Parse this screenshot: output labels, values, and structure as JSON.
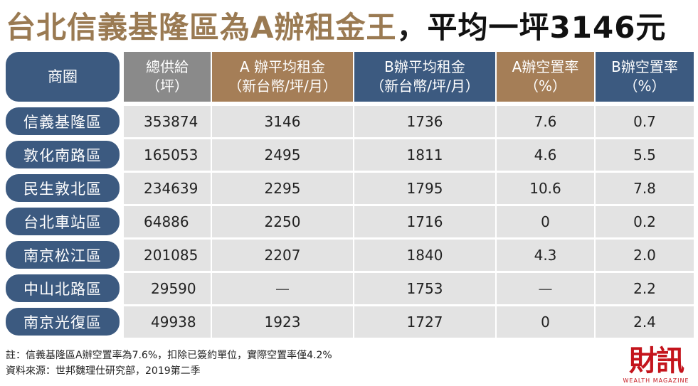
{
  "title": {
    "main": "台北信義基隆區為A辦租金王",
    "separator": "，",
    "highlight": "平均一坪3146元"
  },
  "table": {
    "headers": [
      {
        "line1": "商圈",
        "line2": ""
      },
      {
        "line1": "總供給",
        "line2": "（坪）"
      },
      {
        "line1": "A 辦平均租金",
        "line2": "（新台幣/坪/月）"
      },
      {
        "line1": "B辦平均租金",
        "line2": "（新台幣/坪/月）"
      },
      {
        "line1": "A辦空置率",
        "line2": "（%）"
      },
      {
        "line1": "B辦空置率",
        "line2": "（%）"
      }
    ],
    "rows": [
      {
        "district": "信義基隆區",
        "supply": "353874",
        "a_rent": "3146",
        "b_rent": "1736",
        "a_vacancy": "7.6",
        "b_vacancy": "0.7"
      },
      {
        "district": "敦化南路區",
        "supply": "165053",
        "a_rent": "2495",
        "b_rent": "1811",
        "a_vacancy": "4.6",
        "b_vacancy": "5.5"
      },
      {
        "district": "民生敦北區",
        "supply": "234639",
        "a_rent": "2295",
        "b_rent": "1795",
        "a_vacancy": "10.6",
        "b_vacancy": "7.8"
      },
      {
        "district": "台北車站區",
        "supply": "64886",
        "a_rent": "2250",
        "b_rent": "1716",
        "a_vacancy": "0",
        "b_vacancy": "0.2"
      },
      {
        "district": "南京松江區",
        "supply": "201085",
        "a_rent": "2207",
        "b_rent": "1840",
        "a_vacancy": "4.3",
        "b_vacancy": "2.0"
      },
      {
        "district": "中山北路區",
        "supply": "29590",
        "a_rent": "—",
        "b_rent": "1753",
        "a_vacancy": "—",
        "b_vacancy": "2.2"
      },
      {
        "district": "南京光復區",
        "supply": "49938",
        "a_rent": "1923",
        "b_rent": "1727",
        "a_vacancy": "0",
        "b_vacancy": "2.4"
      }
    ]
  },
  "notes": {
    "note": "註：信義基隆區A辦空置率為7.6%，扣除已簽約單位，實際空置率僅4.2%",
    "source": "資料來源：世邦魏理仕研究部，2019第二季"
  },
  "logo": {
    "text": "財訊",
    "subtext": "WEALTH MAGAZINE"
  },
  "colors": {
    "title_brown": "#9a7a52",
    "header_blue": "#3c5a80",
    "header_gray": "#8a8a8a",
    "header_brown": "#a57e57",
    "cell_bg": "#e3e3e3",
    "logo_red": "#c4141c"
  }
}
